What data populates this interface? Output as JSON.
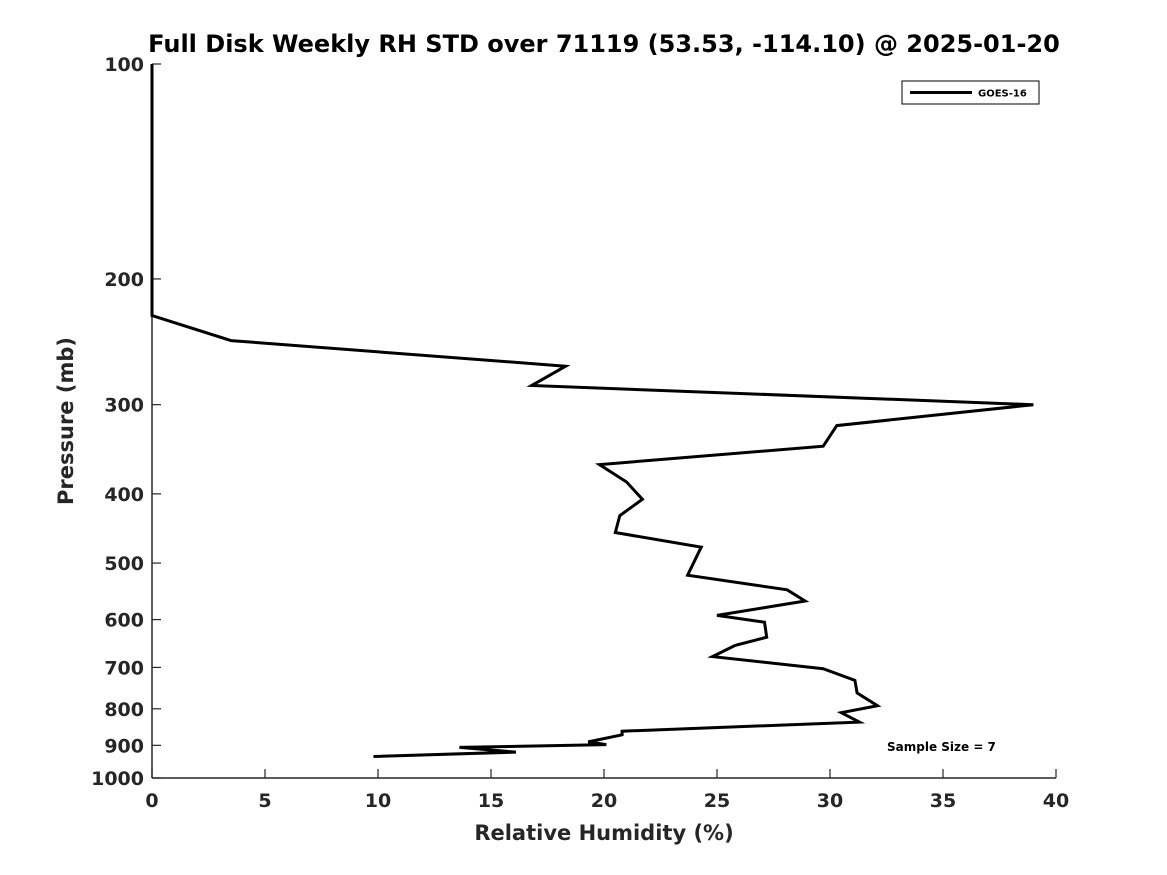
{
  "chart_data": {
    "type": "line",
    "title": "Full Disk Weekly RH STD over 71119 (53.53, -114.10) @ 2025-01-20",
    "xlabel": "Relative Humidity (%)",
    "ylabel": "Pressure (mb)",
    "xlim": [
      0,
      40
    ],
    "ylim": [
      100,
      1000
    ],
    "y_scale": "log",
    "y_reversed": true,
    "x_ticks": [
      0,
      5,
      10,
      15,
      20,
      25,
      30,
      35,
      40
    ],
    "y_ticks": [
      100,
      200,
      300,
      400,
      500,
      600,
      700,
      800,
      900,
      1000
    ],
    "grid": false,
    "legend_position": "top-right",
    "series": [
      {
        "name": "GOES-16",
        "color": "#000000",
        "points": [
          [
            0,
            100
          ],
          [
            0,
            150
          ],
          [
            0,
            200
          ],
          [
            0,
            225
          ],
          [
            3.5,
            244
          ],
          [
            18.3,
            265
          ],
          [
            16.8,
            282
          ],
          [
            39.0,
            300
          ],
          [
            30.3,
            321
          ],
          [
            29.7,
            343
          ],
          [
            19.8,
            364
          ],
          [
            21.0,
            385
          ],
          [
            21.7,
            407
          ],
          [
            20.7,
            429
          ],
          [
            20.5,
            453
          ],
          [
            24.3,
            475
          ],
          [
            24.0,
            497
          ],
          [
            23.7,
            520
          ],
          [
            28.1,
            545
          ],
          [
            28.9,
            565
          ],
          [
            27.3,
            576
          ],
          [
            25.0,
            592
          ],
          [
            27.1,
            605
          ],
          [
            27.2,
            635
          ],
          [
            25.8,
            652
          ],
          [
            24.8,
            676
          ],
          [
            29.7,
            703
          ],
          [
            31.1,
            730
          ],
          [
            31.2,
            760
          ],
          [
            32.1,
            792
          ],
          [
            30.5,
            810
          ],
          [
            31.3,
            835
          ],
          [
            20.8,
            860
          ],
          [
            20.8,
            870
          ],
          [
            19.3,
            890
          ],
          [
            20.1,
            898
          ],
          [
            13.6,
            906
          ],
          [
            16.1,
            920
          ],
          [
            9.8,
            933
          ]
        ]
      }
    ],
    "annotation": "Sample Size = 7"
  }
}
